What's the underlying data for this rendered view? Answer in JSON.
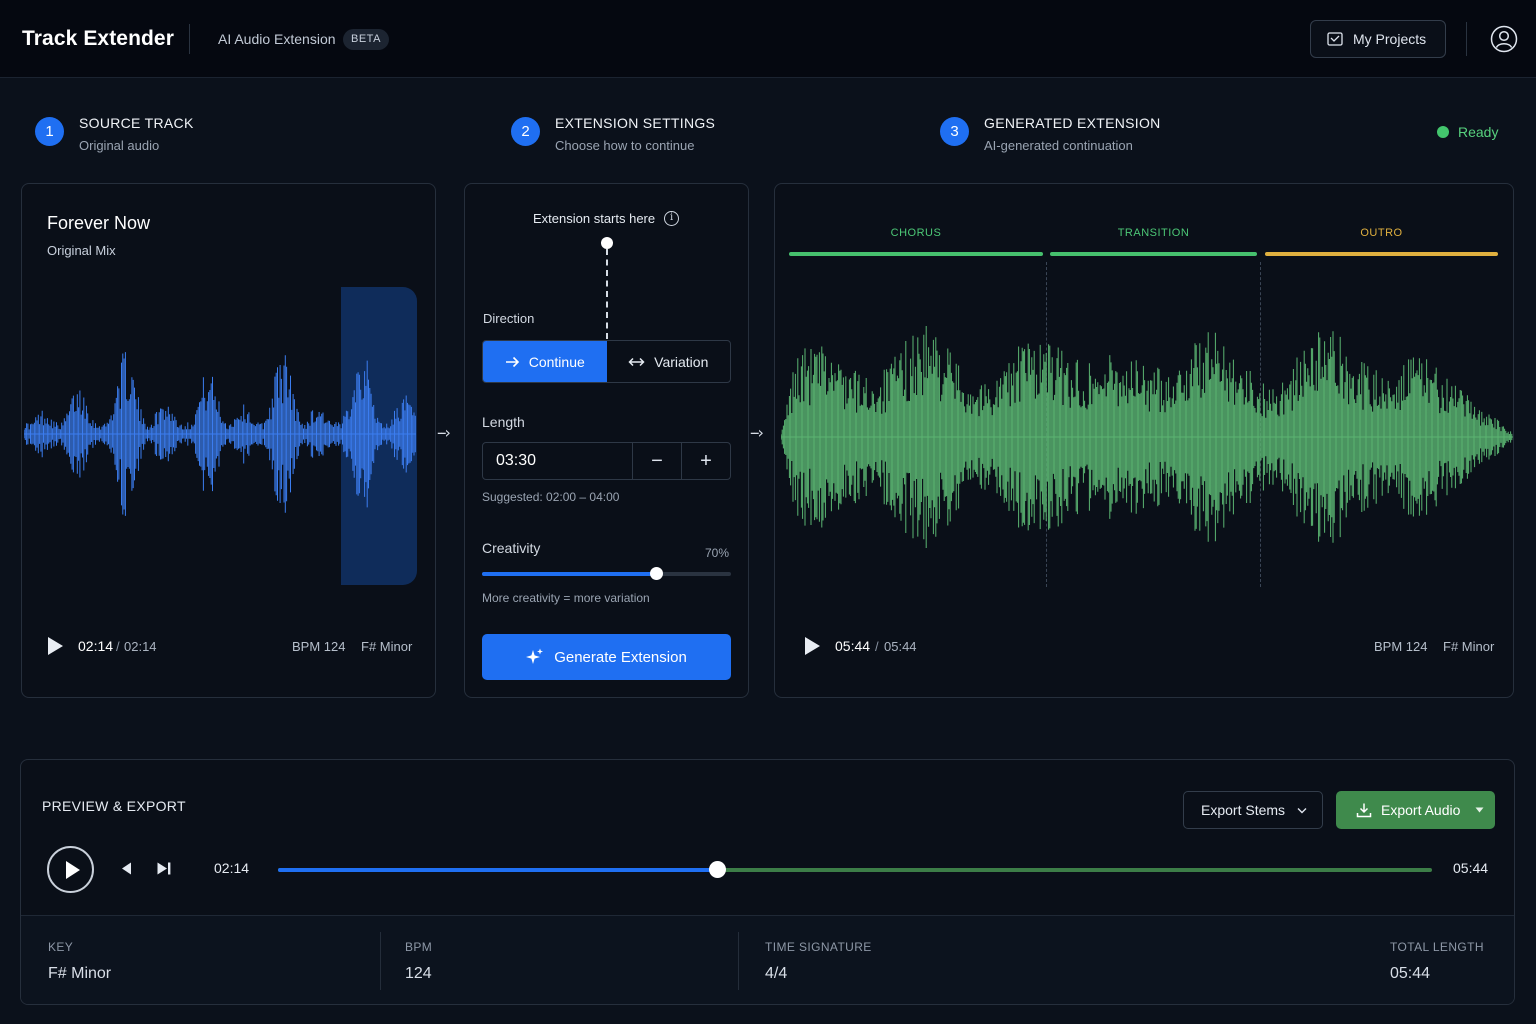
{
  "header": {
    "brand": "Track Extender",
    "subtitle": "AI Audio Extension",
    "badge": "BETA",
    "projects_label": "My Projects"
  },
  "steps": [
    {
      "num": "1",
      "title": "SOURCE TRACK",
      "sub": "Original audio"
    },
    {
      "num": "2",
      "title": "EXTENSION SETTINGS",
      "sub": "Choose how to continue"
    },
    {
      "num": "3",
      "title": "GENERATED EXTENSION",
      "sub": "AI-generated continuation"
    }
  ],
  "status": {
    "label": "Ready",
    "color": "#43c66d"
  },
  "source": {
    "title": "Forever Now",
    "sub": "Original Mix",
    "time_current": "02:14",
    "time_sep": "/",
    "time_total": "02:14",
    "bpm": "BPM 124",
    "key": "F# Minor",
    "wave_color": "#3b7df0"
  },
  "settings": {
    "extension_label": "Extension starts here",
    "direction_label": "Direction",
    "continue_label": "Continue",
    "variation_label": "Variation",
    "length_label": "Length",
    "length_value": "03:30",
    "suggested": "Suggested: 02:00 – 04:00",
    "creativity_label": "Creativity",
    "creativity_value": 0.7,
    "creativity_text": "70%",
    "creativity_hint": "More creativity = more variation",
    "generate_label": "Generate Extension"
  },
  "generated": {
    "segments": [
      {
        "label": "CHORUS",
        "color": "#46c06d"
      },
      {
        "label": "TRANSITION",
        "color": "#46c06d"
      },
      {
        "label": "OUTRO",
        "color": "#e0b03f"
      }
    ],
    "time_current": "05:44",
    "time_sep": "/",
    "time_total": "05:44",
    "bpm": "BPM 124",
    "key": "F# Minor",
    "wave_color": "#5bb572"
  },
  "preview": {
    "title": "PREVIEW & EXPORT",
    "stems_label": "Export Stems",
    "export_label": "Export Audio",
    "time_current": "02:14",
    "time_total": "05:44",
    "progress": 0.38,
    "info": [
      {
        "key": "KEY",
        "value": "F# Minor"
      },
      {
        "key": "BPM",
        "value": "124"
      },
      {
        "key": "TIME SIGNATURE",
        "value": "4/4"
      },
      {
        "key": "TOTAL LENGTH",
        "value": "05:44"
      }
    ]
  }
}
